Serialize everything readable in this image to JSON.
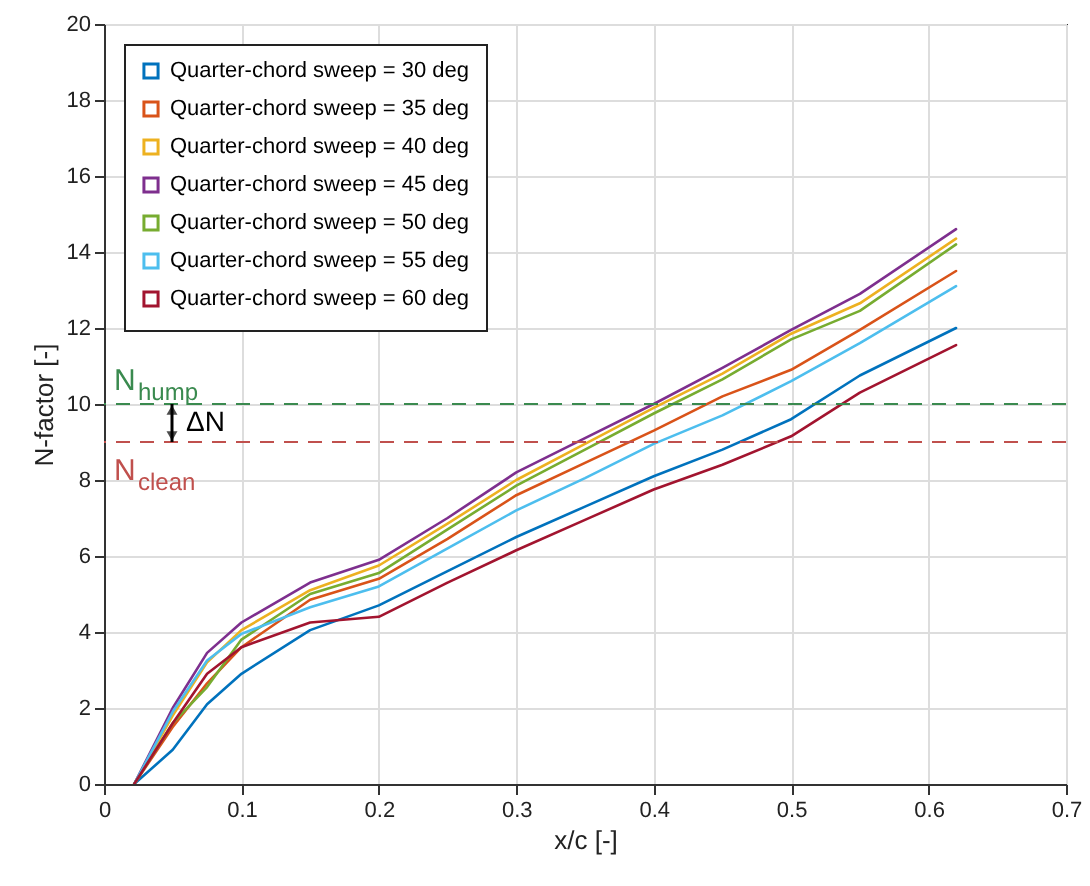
{
  "chart_data": {
    "type": "line",
    "xlabel": "x/c [-]",
    "ylabel": "N-factor [-]",
    "x": [
      0.022,
      0.05,
      0.075,
      0.1,
      0.15,
      0.2,
      0.25,
      0.3,
      0.35,
      0.4,
      0.45,
      0.5,
      0.55,
      0.62
    ],
    "series": [
      {
        "name": "Quarter-chord sweep = 30 deg",
        "color": "#0072bd",
        "values": [
          0,
          0.9,
          2.1,
          2.9,
          4.05,
          4.7,
          5.6,
          6.5,
          7.3,
          8.1,
          8.8,
          9.6,
          10.75,
          12.0
        ]
      },
      {
        "name": "Quarter-chord sweep = 35 deg",
        "color": "#d95319",
        "values": [
          0,
          1.5,
          2.65,
          3.6,
          4.85,
          5.4,
          6.45,
          7.6,
          8.45,
          9.3,
          10.2,
          10.9,
          11.95,
          13.5
        ]
      },
      {
        "name": "Quarter-chord sweep = 40 deg",
        "color": "#edb120",
        "values": [
          0,
          1.8,
          3.2,
          4.05,
          5.1,
          5.75,
          6.85,
          8.0,
          8.95,
          9.9,
          10.8,
          11.85,
          12.65,
          14.35
        ]
      },
      {
        "name": "Quarter-chord sweep = 45 deg",
        "color": "#7e2f8e",
        "values": [
          0,
          2.0,
          3.45,
          4.25,
          5.3,
          5.9,
          7.0,
          8.2,
          9.1,
          10.0,
          10.95,
          11.95,
          12.9,
          14.6
        ]
      },
      {
        "name": "Quarter-chord sweep = 50 deg",
        "color": "#77ac30",
        "values": [
          0,
          1.6,
          2.55,
          3.8,
          5.0,
          5.55,
          6.7,
          7.85,
          8.8,
          9.75,
          10.65,
          11.7,
          12.45,
          14.2
        ]
      },
      {
        "name": "Quarter-chord sweep = 55 deg",
        "color": "#4dbeee",
        "values": [
          0,
          1.9,
          3.25,
          3.95,
          4.65,
          5.2,
          6.2,
          7.2,
          8.05,
          8.95,
          9.7,
          10.6,
          11.6,
          13.1
        ]
      },
      {
        "name": "Quarter-chord sweep = 60 deg",
        "color": "#a2142f",
        "values": [
          0,
          1.6,
          2.9,
          3.6,
          4.25,
          4.4,
          5.3,
          6.15,
          6.95,
          7.75,
          8.4,
          9.15,
          10.3,
          11.55
        ]
      }
    ],
    "xlim": [
      0,
      0.7
    ],
    "xticks": [
      0,
      0.1,
      0.2,
      0.3,
      0.4,
      0.5,
      0.6,
      0.7
    ],
    "ylim": [
      0,
      20
    ],
    "yticks": [
      0,
      2,
      4,
      6,
      8,
      10,
      12,
      14,
      16,
      18,
      20
    ],
    "ref_lines": [
      {
        "axis": "y",
        "value": 10,
        "label": "N$_{hump}$",
        "color": "#3a8a4f",
        "line_style": "dashed"
      },
      {
        "axis": "y",
        "value": 9,
        "label": "N$_{clean}$",
        "color": "#c0504d",
        "line_style": "dashed"
      }
    ],
    "annotations": [
      "ΔN"
    ],
    "grid": true,
    "legend": "top left",
    "marker": "none",
    "line_style": "solid"
  }
}
